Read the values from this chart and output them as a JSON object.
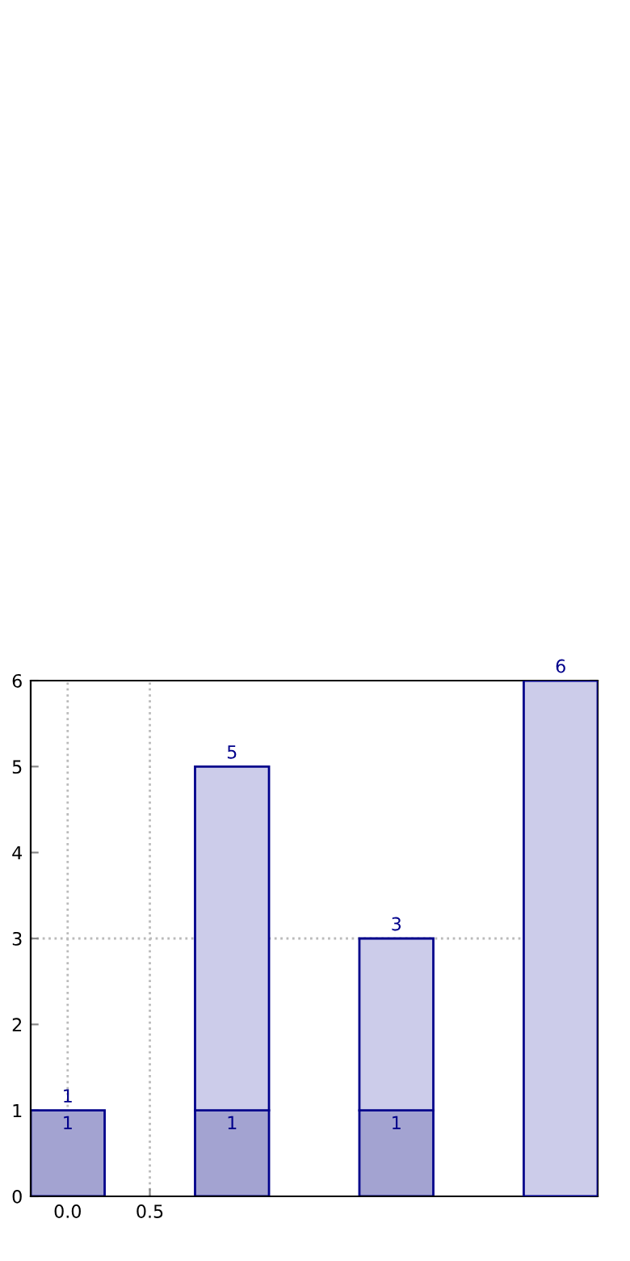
{
  "chart_data": {
    "type": "bar",
    "x": [
      0,
      1,
      2,
      3
    ],
    "xlim": [
      -0.225,
      3.225
    ],
    "xticks": [
      {
        "value": 0,
        "label": "0.0"
      },
      {
        "value": 0.5,
        "label": "0.5"
      }
    ],
    "ylim": [
      0,
      6
    ],
    "yticks": [
      0,
      1,
      2,
      3,
      4,
      5,
      6
    ],
    "stacked": true,
    "series": [
      {
        "color": "#a3a3d1",
        "values": [
          1,
          1,
          1,
          null
        ],
        "value_labels": [
          "1",
          "1",
          "1",
          null
        ]
      },
      {
        "color": "#ccccea",
        "values": [
          null,
          4,
          2,
          6
        ]
      }
    ],
    "totals": [
      "1",
      "5",
      "3",
      "6"
    ],
    "grid": false,
    "ref_lines": [
      {
        "axis": "x",
        "value": 0,
        "line_style": "dotted",
        "color": "#bbbbbb"
      },
      {
        "axis": "x",
        "value": 0.5,
        "line_style": "dotted",
        "color": "#bbbbbb"
      },
      {
        "axis": "y",
        "value": 3,
        "line_style": "dotted",
        "color": "#bbbbbb"
      }
    ]
  }
}
